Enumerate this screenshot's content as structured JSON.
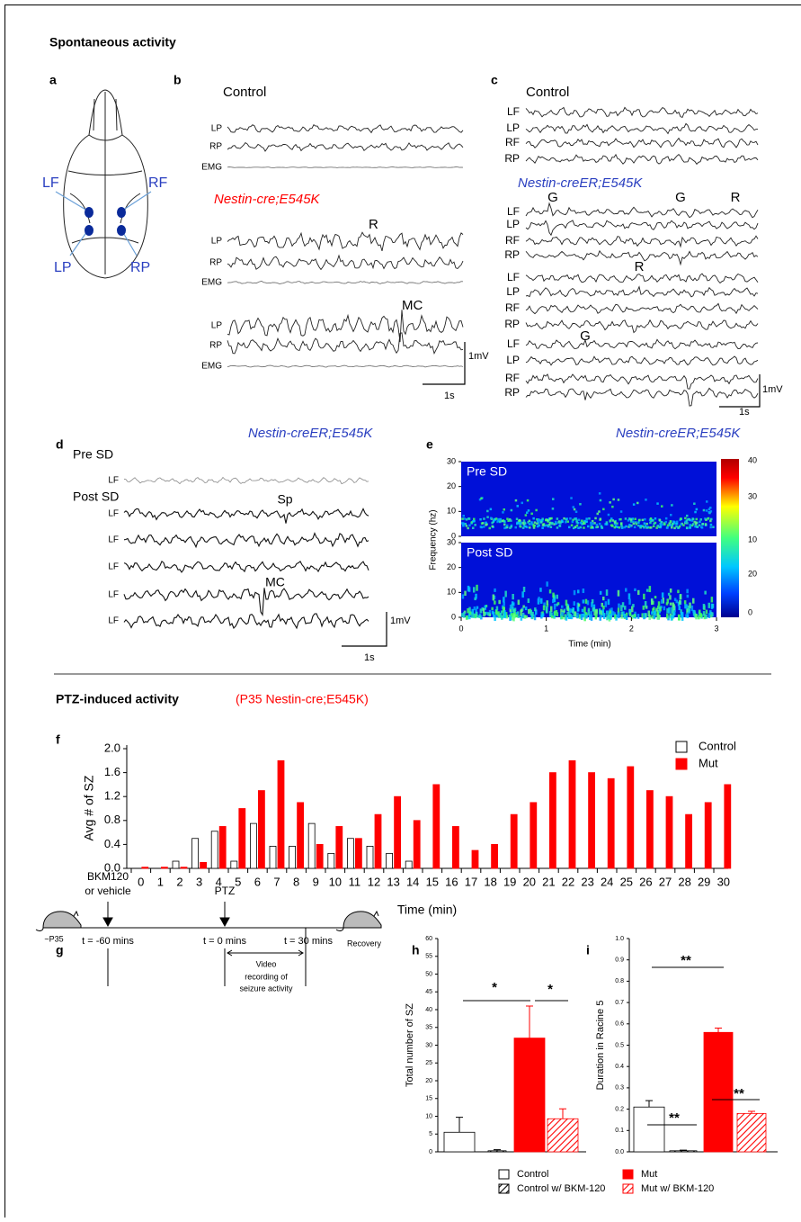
{
  "headings": {
    "spontaneous": "Spontaneous activity",
    "ptz": "PTZ-induced activity",
    "ptz_note": "(P35 Nestin-cre;E545K)"
  },
  "panel_letters": [
    "a",
    "b",
    "c",
    "d",
    "e",
    "f",
    "g",
    "h",
    "i"
  ],
  "panel_a": {
    "electrodes": [
      "LF",
      "RF",
      "LP",
      "RP"
    ]
  },
  "panel_b": {
    "control_title": "Control",
    "mutant_title": "Nestin-cre;E545K",
    "traces": [
      "LP",
      "RP",
      "EMG",
      "LP",
      "RP",
      "EMG",
      "LP",
      "RP",
      "EMG"
    ],
    "annotations": [
      "R",
      "MC"
    ],
    "scale_v": "1mV",
    "scale_t": "1s"
  },
  "panel_c": {
    "control_title": "Control",
    "mutant_title": "Nestin-creER;E545K",
    "traces": [
      "LF",
      "LP",
      "RF",
      "RP",
      "LF",
      "LP",
      "RF",
      "RP",
      "LF",
      "LP",
      "RF",
      "RP",
      "LF",
      "LP",
      "RF",
      "RP"
    ],
    "annotations": [
      "G",
      "G",
      "R",
      "R",
      "G"
    ],
    "scale_v": "1mV",
    "scale_t": "1s"
  },
  "panel_d": {
    "title": "Nestin-creER;E545K",
    "pre": "Pre SD",
    "post": "Post SD",
    "traces": [
      "LF",
      "LF",
      "LF",
      "LF",
      "LF",
      "LF"
    ],
    "annotations": [
      "Sp",
      "MC"
    ],
    "scale_v": "1mV",
    "scale_t": "1s"
  },
  "panel_e": {
    "title": "Nestin-creER;E545K",
    "pre": "Pre SD",
    "post": "Post SD",
    "ylabel": "Frequency (hz)",
    "xlabel": "Time (min)",
    "xticks": [
      0,
      1,
      2,
      3
    ],
    "yticks": [
      0,
      10,
      20,
      30
    ],
    "colorbar_labels": [
      40,
      30,
      10,
      20,
      0
    ]
  },
  "panel_g": {
    "start": "~P35",
    "end": "Recovery",
    "drug": [
      "BKM120",
      "or vehicle"
    ],
    "ptz": "PTZ",
    "timepoints": [
      "t = -60 mins",
      "t = 0 mins",
      "t = 30 mins"
    ],
    "video": [
      "Video",
      "recording of",
      "seizure activity"
    ]
  },
  "chart_data": [
    {
      "type": "bar",
      "ylabel": "Avg # of SZ",
      "xlabel": "Time  (min)",
      "categories": [
        "0",
        "1",
        "2",
        "3",
        "4",
        "5",
        "6",
        "7",
        "8",
        "9",
        "10",
        "11",
        "12",
        "13",
        "14",
        "15",
        "16",
        "17",
        "18",
        "19",
        "20",
        "21",
        "22",
        "23",
        "24",
        "25",
        "26",
        "27",
        "28",
        "29",
        "30"
      ],
      "series": [
        {
          "name": "Control",
          "color": "#ffffff",
          "values": [
            0,
            0,
            0.12,
            0.5,
            0.62,
            0.12,
            0.75,
            0.37,
            0.37,
            0.75,
            0.25,
            0.5,
            0.37,
            0.25,
            0.12,
            0,
            0,
            0,
            0,
            0,
            0,
            0,
            0,
            0,
            0,
            0,
            0,
            0,
            0,
            0,
            0
          ]
        },
        {
          "name": "Mut",
          "color": "#ff0000",
          "values": [
            0.02,
            0.02,
            0.02,
            0.1,
            0.7,
            1.0,
            1.3,
            1.8,
            1.1,
            0.4,
            0.7,
            0.5,
            0.9,
            1.2,
            0.8,
            1.4,
            0.7,
            0.3,
            0.4,
            0.9,
            1.1,
            1.6,
            1.8,
            1.6,
            1.5,
            1.7,
            1.3,
            1.2,
            0.9,
            1.1,
            1.4
          ]
        }
      ],
      "ylim": [
        0,
        2
      ],
      "yticks": [
        {
          "value": 0,
          "label": "0.0"
        },
        0.4,
        0.8,
        1.2,
        1.6,
        {
          "value": 2,
          "label": "2.0"
        }
      ],
      "legend": "upper right"
    },
    {
      "type": "errorbar",
      "ylabel": "Total number of SZ",
      "categories": [
        null,
        null,
        null,
        null
      ],
      "values": [
        5.5,
        0.3,
        32,
        9.3
      ],
      "errors": [
        4.2,
        0.3,
        9,
        2.8
      ],
      "colors": [
        "#ffffff",
        "#000000",
        "#ff0000",
        "#ff0000"
      ],
      "hatched": [
        false,
        true,
        false,
        true
      ],
      "ylim": [
        0,
        60
      ],
      "yticks": [
        0,
        5,
        10,
        15,
        20,
        25,
        30,
        35,
        40,
        45,
        50,
        55,
        60
      ],
      "annotations": [
        "*",
        "*"
      ],
      "legend": [
        "Control",
        "Control w/ BKM-120",
        "Mut",
        "Mut w/ BKM-120"
      ]
    },
    {
      "type": "errorbar",
      "ylabel": "Duration in Racine 5",
      "categories": [
        null,
        null,
        null,
        null
      ],
      "values": [
        0.21,
        0.005,
        0.56,
        0.18
      ],
      "errors": [
        0.03,
        0.003,
        0.02,
        0.01
      ],
      "colors": [
        "#ffffff",
        "#000000",
        "#ff0000",
        "#ff0000"
      ],
      "hatched": [
        false,
        true,
        false,
        true
      ],
      "ylim": [
        0,
        1
      ],
      "yticks": [
        {
          "value": 0,
          "label": "0.0"
        },
        0.1,
        0.2,
        0.3,
        0.4,
        0.5,
        0.6,
        0.7,
        0.8,
        0.9,
        {
          "value": 1,
          "label": "1.0"
        }
      ],
      "annotations": [
        "**",
        "**",
        "**"
      ]
    }
  ]
}
